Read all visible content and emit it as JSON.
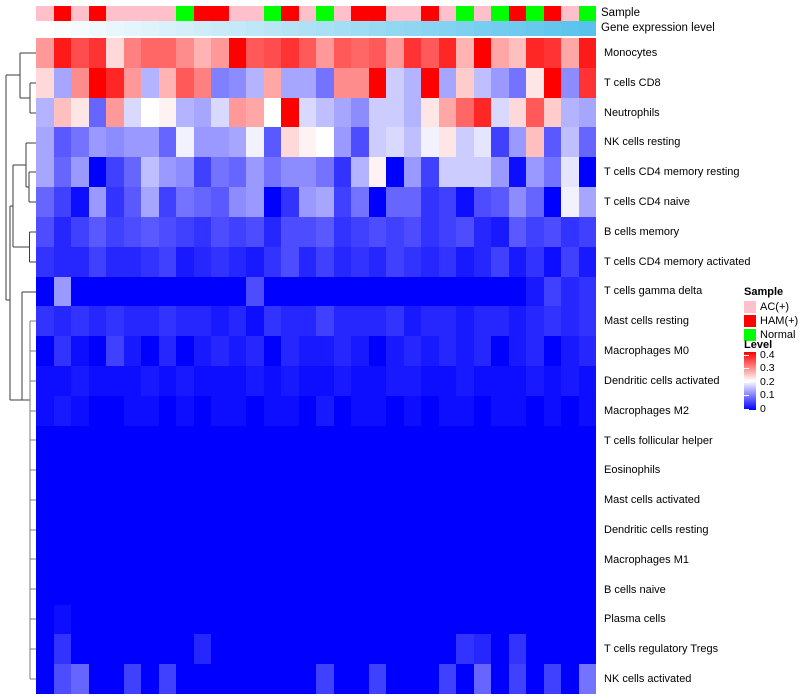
{
  "figure": {
    "background": "#ffffff"
  },
  "tracks": {
    "sample_label": "Sample",
    "gene_label": "Gene expression level",
    "gene_gradient": {
      "start": "#ffffff",
      "end": "#58c2ec"
    }
  },
  "legend": {
    "sample_title": "Sample",
    "sample_items": [
      {
        "label": "AC(+)",
        "color": "#ffc0cb"
      },
      {
        "label": "HAM(+)",
        "color": "#ff0000"
      },
      {
        "label": "Normal",
        "color": "#00ff00"
      }
    ],
    "level_title": "Level",
    "level_ticks": [
      "0.4",
      "0.3",
      "0.2",
      "0.1",
      "0"
    ],
    "level_colors": {
      "high": "#ff0000",
      "mid": "#ffffff",
      "low": "#0000ff"
    }
  },
  "dendrogram": {
    "color_main": "#3e3e3e",
    "color_lower": "#7e7e7e",
    "segments": [
      [
        20,
        53,
        36,
        53
      ],
      [
        30,
        83,
        36,
        83
      ],
      [
        30,
        113,
        36,
        113
      ],
      [
        30,
        83,
        30,
        113
      ],
      [
        20,
        53,
        20,
        98
      ],
      [
        20,
        98,
        30,
        98
      ],
      [
        6,
        75,
        20,
        75
      ],
      [
        6,
        75,
        6,
        300
      ],
      [
        6,
        300,
        10,
        300
      ],
      [
        10,
        206,
        10,
        400
      ],
      [
        10,
        206,
        13,
        206
      ],
      [
        13,
        165,
        26,
        165
      ],
      [
        13,
        165,
        13,
        247
      ],
      [
        26,
        143,
        36,
        143
      ],
      [
        26,
        143,
        26,
        187
      ],
      [
        26,
        187,
        29,
        187
      ],
      [
        29,
        172,
        36,
        172
      ],
      [
        29,
        172,
        29,
        202
      ],
      [
        29,
        202,
        36,
        202
      ],
      [
        29.5,
        232,
        36,
        232
      ],
      [
        29.5,
        232,
        29.5,
        262
      ],
      [
        29.5,
        262,
        36,
        262
      ],
      [
        13,
        247,
        29.5,
        247
      ],
      [
        22,
        292,
        36,
        292
      ],
      [
        22,
        292,
        22,
        400
      ],
      [
        10,
        400,
        30,
        400
      ]
    ],
    "lower_segments": [
      [
        30,
        321,
        30,
        679
      ],
      [
        30,
        321,
        36,
        321
      ],
      [
        30,
        351,
        36,
        351
      ],
      [
        30,
        381,
        36,
        381
      ],
      [
        30,
        411,
        36,
        411
      ],
      [
        30,
        440,
        36,
        440
      ],
      [
        30,
        470,
        36,
        470
      ],
      [
        30,
        500,
        36,
        500
      ],
      [
        30,
        530,
        36,
        530
      ],
      [
        30,
        559,
        36,
        559
      ],
      [
        30,
        589,
        36,
        589
      ],
      [
        30,
        619,
        36,
        619
      ],
      [
        30,
        649,
        36,
        649
      ],
      [
        30,
        679,
        36,
        679
      ]
    ]
  },
  "chart_data": {
    "type": "heatmap",
    "description": "Immune cell fraction heatmap (rows clustered) with sample-type and gene-expression-level column annotations",
    "value_range": [
      0,
      0.4
    ],
    "colormap": "blue (0) -> white (0.2) -> red (0.4)",
    "n_columns": 32,
    "columns_labeled": false,
    "gene_expression_track": "stepped gradient increasing left to right, white to sky blue",
    "sample_track": [
      "AC",
      "HAM",
      "AC",
      "HAM",
      "AC",
      "AC",
      "AC",
      "AC",
      "Normal",
      "HAM",
      "HAM",
      "AC",
      "AC",
      "Normal",
      "HAM",
      "AC",
      "Normal",
      "AC",
      "HAM",
      "HAM",
      "AC",
      "AC",
      "HAM",
      "AC",
      "Normal",
      "AC",
      "Normal",
      "HAM",
      "Normal",
      "HAM",
      "AC",
      "Normal"
    ],
    "rows": [
      "Monocytes",
      "T cells CD8",
      "Neutrophils",
      "NK cells resting",
      "T cells CD4 memory resting",
      "T cells CD4 naive",
      "B cells memory",
      "T cells CD4 memory activated",
      "T cells gamma delta",
      "Mast cells resting",
      "Macrophages M0",
      "Dendritic cells activated",
      "Macrophages M2",
      "T cells follicular helper",
      "Eosinophils",
      "Mast cells activated",
      "Dendritic cells resting",
      "Macrophages M1",
      "B cells naive",
      "Plasma cells",
      "T cells regulatory  Tregs",
      "NK cells activated"
    ],
    "values": [
      [
        0.28,
        0.38,
        0.34,
        0.36,
        0.23,
        0.3,
        0.32,
        0.32,
        0.29,
        0.26,
        0.28,
        0.4,
        0.33,
        0.34,
        0.36,
        0.33,
        0.28,
        0.33,
        0.32,
        0.33,
        0.28,
        0.36,
        0.33,
        0.37,
        0.26,
        0.4,
        0.27,
        0.25,
        0.37,
        0.36,
        0.27,
        0.38
      ],
      [
        0.23,
        0.13,
        0.29,
        0.4,
        0.37,
        0.28,
        0.14,
        0.26,
        0.33,
        0.3,
        0.1,
        0.11,
        0.14,
        0.27,
        0.13,
        0.13,
        0.09,
        0.29,
        0.29,
        0.4,
        0.16,
        0.14,
        0.4,
        0.13,
        0.24,
        0.15,
        0.12,
        0.09,
        0.22,
        0.4,
        0.11,
        0.36
      ],
      [
        0.14,
        0.25,
        0.22,
        0.08,
        0.28,
        0.17,
        0.2,
        0.21,
        0.14,
        0.13,
        0.17,
        0.28,
        0.27,
        0.2,
        0.4,
        0.17,
        0.15,
        0.13,
        0.11,
        0.16,
        0.16,
        0.14,
        0.22,
        0.27,
        0.32,
        0.37,
        0.17,
        0.23,
        0.33,
        0.24,
        0.14,
        0.13
      ],
      [
        0.13,
        0.07,
        0.09,
        0.12,
        0.11,
        0.12,
        0.12,
        0.08,
        0.19,
        0.12,
        0.12,
        0.13,
        0.19,
        0.07,
        0.23,
        0.21,
        0.2,
        0.12,
        0.06,
        0.16,
        0.17,
        0.15,
        0.19,
        0.22,
        0.16,
        0.18,
        0.05,
        0.12,
        0.25,
        0.07,
        0.15,
        0.08
      ],
      [
        0.13,
        0.08,
        0.12,
        0.0,
        0.05,
        0.08,
        0.15,
        0.12,
        0.11,
        0.05,
        0.09,
        0.08,
        0.12,
        0.09,
        0.11,
        0.11,
        0.09,
        0.04,
        0.14,
        0.21,
        0.0,
        0.12,
        0.05,
        0.16,
        0.16,
        0.16,
        0.12,
        0.01,
        0.12,
        0.09,
        0.18,
        0.0
      ],
      [
        0.08,
        0.05,
        0.01,
        0.12,
        0.04,
        0.07,
        0.13,
        0.05,
        0.09,
        0.08,
        0.07,
        0.11,
        0.12,
        0.0,
        0.04,
        0.12,
        0.13,
        0.05,
        0.09,
        0.0,
        0.08,
        0.08,
        0.04,
        0.05,
        0.01,
        0.06,
        0.07,
        0.11,
        0.08,
        0.0,
        0.19,
        0.13
      ],
      [
        0.06,
        0.03,
        0.05,
        0.07,
        0.05,
        0.06,
        0.07,
        0.06,
        0.05,
        0.04,
        0.06,
        0.05,
        0.06,
        0.03,
        0.06,
        0.06,
        0.07,
        0.04,
        0.05,
        0.06,
        0.05,
        0.06,
        0.04,
        0.05,
        0.06,
        0.03,
        0.02,
        0.07,
        0.05,
        0.06,
        0.04,
        0.05
      ],
      [
        0.04,
        0.03,
        0.03,
        0.05,
        0.03,
        0.03,
        0.04,
        0.05,
        0.02,
        0.03,
        0.04,
        0.03,
        0.02,
        0.04,
        0.06,
        0.03,
        0.05,
        0.03,
        0.04,
        0.03,
        0.05,
        0.04,
        0.03,
        0.04,
        0.02,
        0.03,
        0.05,
        0.02,
        0.04,
        0.01,
        0.05,
        0.02
      ],
      [
        0.0,
        0.12,
        0.0,
        0.0,
        0.0,
        0.0,
        0.0,
        0.0,
        0.0,
        0.0,
        0.0,
        0.0,
        0.06,
        0.0,
        0.0,
        0.0,
        0.0,
        0.0,
        0.0,
        0.0,
        0.0,
        0.0,
        0.0,
        0.0,
        0.0,
        0.0,
        0.0,
        0.0,
        0.02,
        0.05,
        0.03,
        0.04
      ],
      [
        0.04,
        0.03,
        0.04,
        0.03,
        0.04,
        0.03,
        0.03,
        0.04,
        0.03,
        0.03,
        0.02,
        0.03,
        0.01,
        0.04,
        0.03,
        0.03,
        0.05,
        0.03,
        0.03,
        0.03,
        0.04,
        0.02,
        0.03,
        0.03,
        0.02,
        0.03,
        0.03,
        0.02,
        0.03,
        0.04,
        0.03,
        0.04
      ],
      [
        0.0,
        0.04,
        0.01,
        0.0,
        0.05,
        0.02,
        0.0,
        0.03,
        0.0,
        0.02,
        0.03,
        0.02,
        0.03,
        0.0,
        0.03,
        0.02,
        0.02,
        0.03,
        0.02,
        0.0,
        0.02,
        0.03,
        0.02,
        0.03,
        0.02,
        0.03,
        0.0,
        0.02,
        0.03,
        0.0,
        0.02,
        0.03
      ],
      [
        0.01,
        0.01,
        0.02,
        0.01,
        0.01,
        0.01,
        0.02,
        0.01,
        0.02,
        0.01,
        0.01,
        0.01,
        0.02,
        0.01,
        0.02,
        0.01,
        0.01,
        0.02,
        0.01,
        0.01,
        0.02,
        0.02,
        0.01,
        0.01,
        0.02,
        0.01,
        0.01,
        0.01,
        0.02,
        0.01,
        0.02,
        0.01
      ],
      [
        0.01,
        0.02,
        0.01,
        0.0,
        0.0,
        0.01,
        0.01,
        0.0,
        0.01,
        0.0,
        0.01,
        0.01,
        0.0,
        0.01,
        0.01,
        0.0,
        0.02,
        0.0,
        0.01,
        0.01,
        0.0,
        0.01,
        0.0,
        0.01,
        0.01,
        0.0,
        0.01,
        0.01,
        0.0,
        0.01,
        0.0,
        0.01
      ],
      [
        0.0,
        0.0,
        0.0,
        0.0,
        0.0,
        0.0,
        0.0,
        0.0,
        0.0,
        0.0,
        0.0,
        0.0,
        0.0,
        0.0,
        0.0,
        0.0,
        0.0,
        0.0,
        0.0,
        0.0,
        0.0,
        0.0,
        0.0,
        0.0,
        0.0,
        0.0,
        0.0,
        0.0,
        0.0,
        0.0,
        0.0,
        0.0
      ],
      [
        0.0,
        0.0,
        0.0,
        0.0,
        0.0,
        0.0,
        0.0,
        0.0,
        0.0,
        0.0,
        0.0,
        0.0,
        0.0,
        0.0,
        0.0,
        0.0,
        0.0,
        0.0,
        0.0,
        0.0,
        0.0,
        0.0,
        0.0,
        0.0,
        0.0,
        0.0,
        0.0,
        0.0,
        0.0,
        0.0,
        0.0,
        0.0
      ],
      [
        0.0,
        0.0,
        0.0,
        0.0,
        0.0,
        0.0,
        0.0,
        0.0,
        0.0,
        0.0,
        0.0,
        0.0,
        0.0,
        0.0,
        0.0,
        0.0,
        0.0,
        0.0,
        0.0,
        0.0,
        0.0,
        0.0,
        0.0,
        0.0,
        0.0,
        0.0,
        0.0,
        0.0,
        0.0,
        0.0,
        0.0,
        0.0
      ],
      [
        0.0,
        0.0,
        0.0,
        0.0,
        0.0,
        0.0,
        0.0,
        0.0,
        0.0,
        0.0,
        0.0,
        0.0,
        0.0,
        0.0,
        0.0,
        0.0,
        0.0,
        0.0,
        0.0,
        0.0,
        0.0,
        0.0,
        0.0,
        0.0,
        0.0,
        0.0,
        0.0,
        0.0,
        0.0,
        0.0,
        0.0,
        0.0
      ],
      [
        0.0,
        0.0,
        0.0,
        0.0,
        0.0,
        0.0,
        0.0,
        0.0,
        0.0,
        0.0,
        0.0,
        0.0,
        0.0,
        0.0,
        0.0,
        0.0,
        0.0,
        0.0,
        0.0,
        0.0,
        0.0,
        0.0,
        0.0,
        0.0,
        0.0,
        0.0,
        0.0,
        0.0,
        0.0,
        0.0,
        0.0,
        0.0
      ],
      [
        0.0,
        0.0,
        0.0,
        0.0,
        0.0,
        0.0,
        0.0,
        0.0,
        0.0,
        0.0,
        0.0,
        0.0,
        0.0,
        0.0,
        0.0,
        0.0,
        0.0,
        0.0,
        0.0,
        0.0,
        0.0,
        0.0,
        0.0,
        0.0,
        0.0,
        0.0,
        0.0,
        0.0,
        0.0,
        0.0,
        0.0,
        0.0
      ],
      [
        0.0,
        0.01,
        0.0,
        0.0,
        0.0,
        0.0,
        0.0,
        0.0,
        0.0,
        0.0,
        0.0,
        0.0,
        0.0,
        0.0,
        0.0,
        0.0,
        0.0,
        0.0,
        0.0,
        0.0,
        0.0,
        0.0,
        0.0,
        0.0,
        0.0,
        0.0,
        0.0,
        0.0,
        0.0,
        0.0,
        0.0,
        0.0
      ],
      [
        0.0,
        0.04,
        0.0,
        0.0,
        0.0,
        0.0,
        0.0,
        0.0,
        0.0,
        0.03,
        0.0,
        0.0,
        0.0,
        0.0,
        0.0,
        0.0,
        0.0,
        0.0,
        0.0,
        0.0,
        0.0,
        0.0,
        0.0,
        0.0,
        0.04,
        0.03,
        0.0,
        0.04,
        0.0,
        0.0,
        0.0,
        0.0
      ],
      [
        0.0,
        0.06,
        0.08,
        0.0,
        0.0,
        0.05,
        0.0,
        0.05,
        0.0,
        0.0,
        0.0,
        0.0,
        0.0,
        0.0,
        0.0,
        0.0,
        0.05,
        0.0,
        0.0,
        0.05,
        0.0,
        0.0,
        0.0,
        0.05,
        0.0,
        0.08,
        0.0,
        0.05,
        0.0,
        0.05,
        0.0,
        0.09
      ]
    ]
  }
}
